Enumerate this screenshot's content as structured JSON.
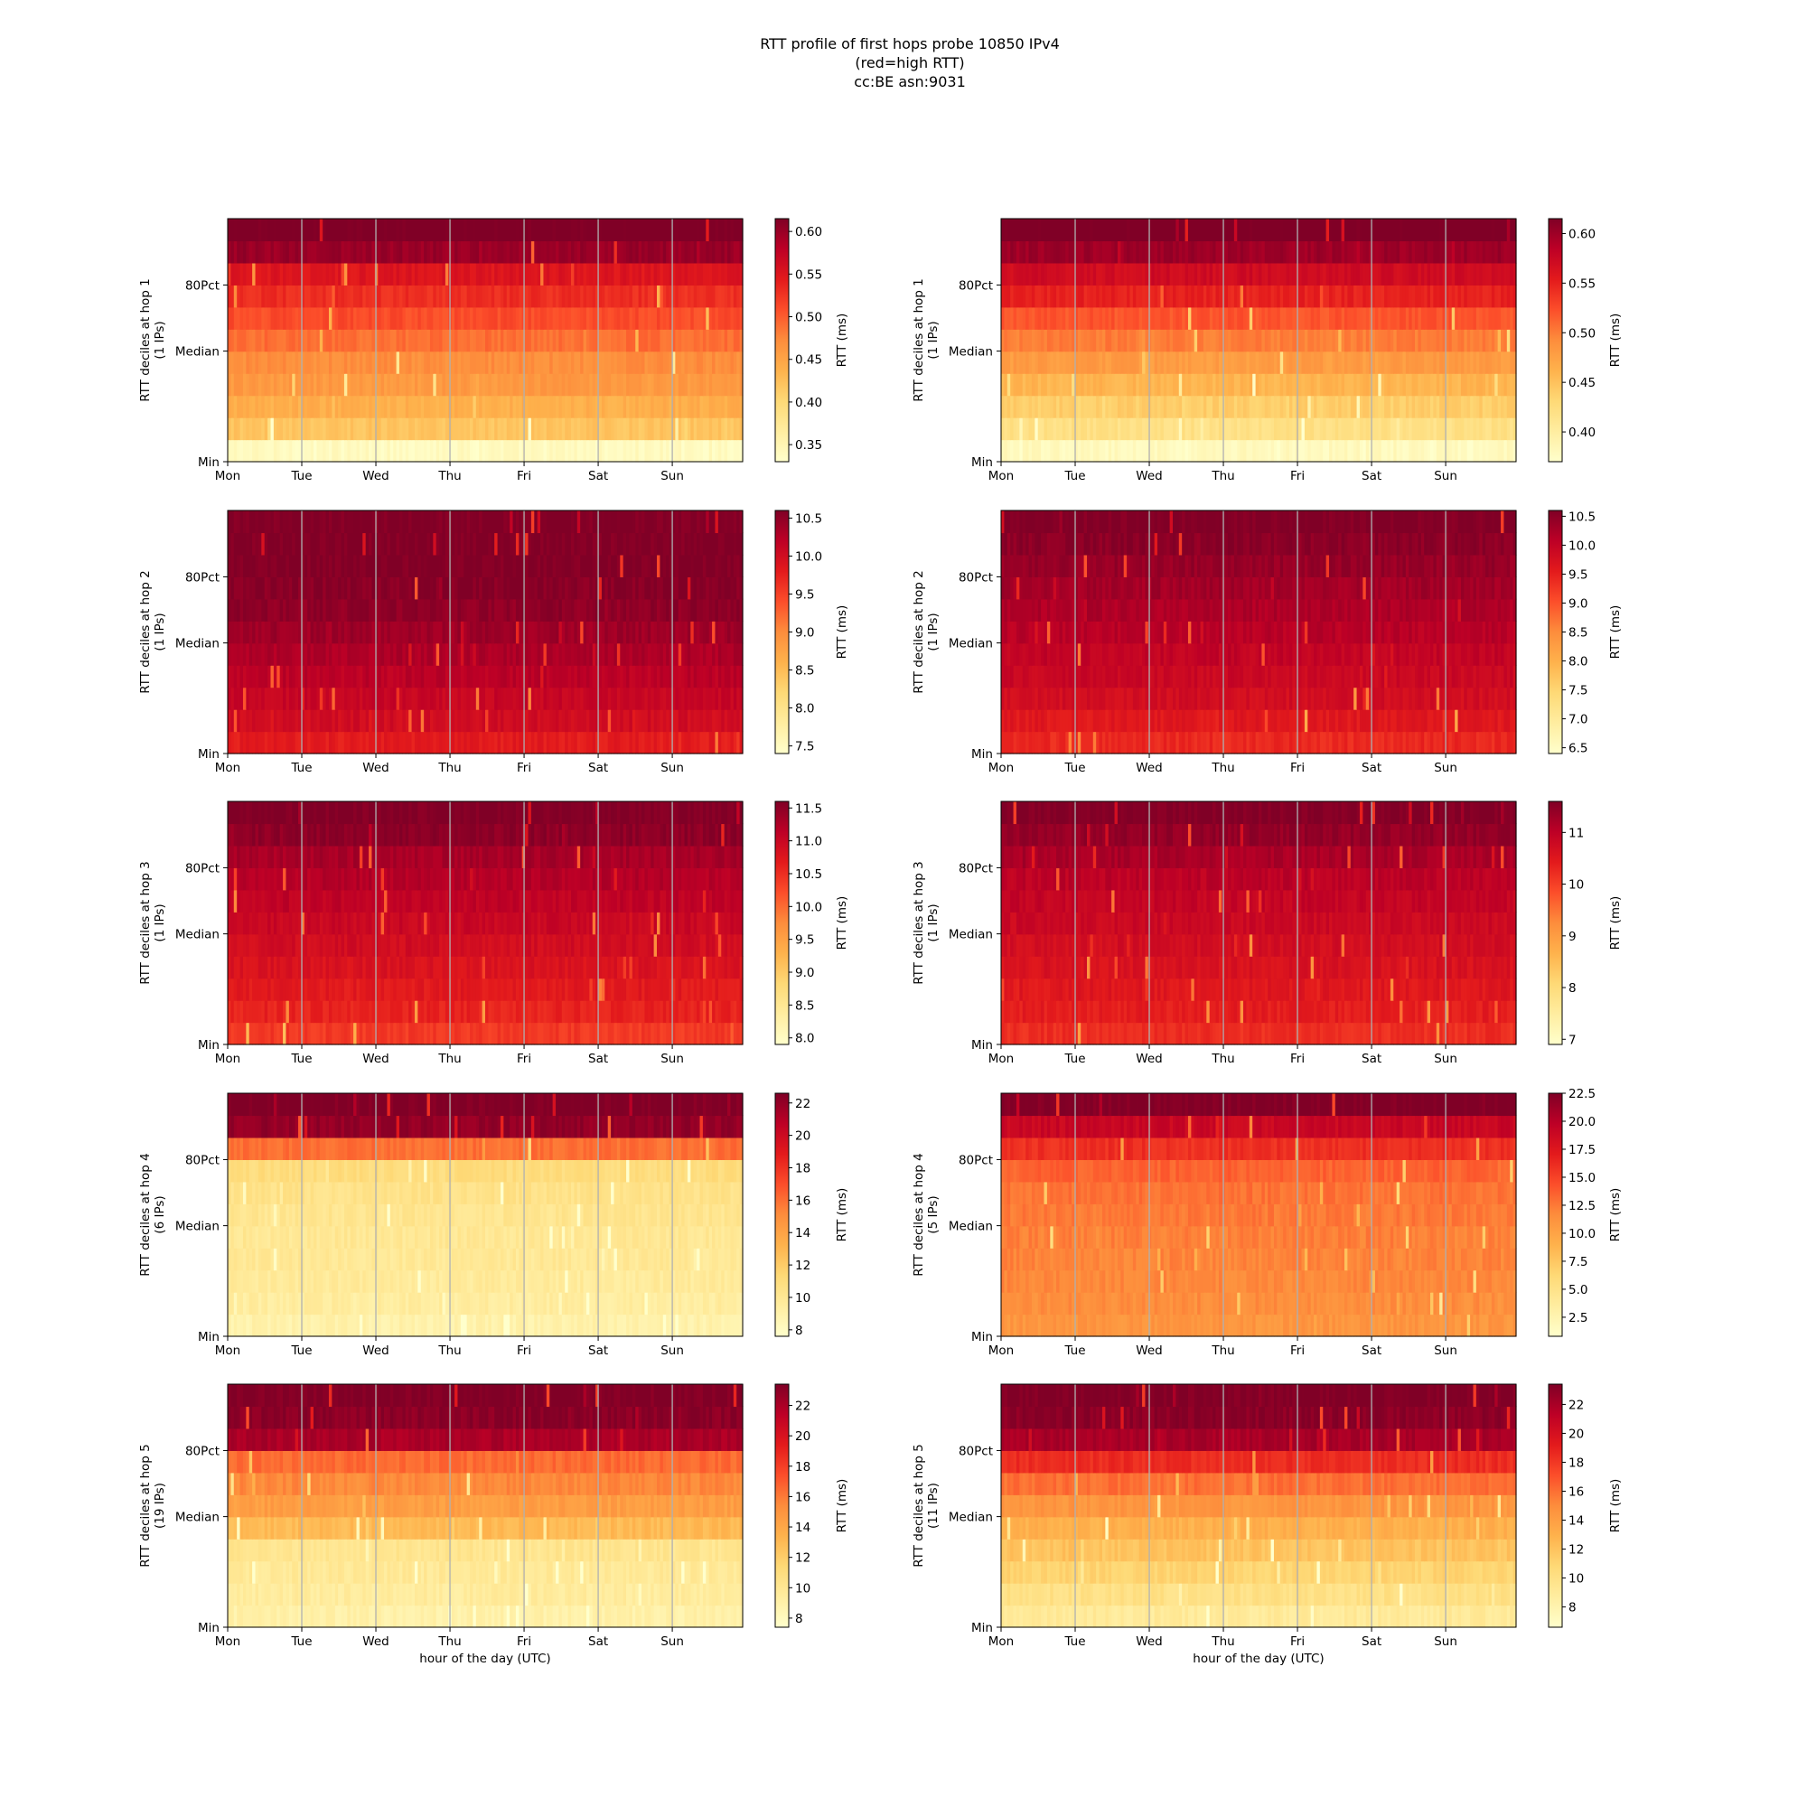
{
  "figure": {
    "title_lines": [
      "RTT profile of first hops probe 10850 IPv4",
      "(red=high RTT)",
      "cc:BE asn:9031"
    ]
  },
  "colormap": [
    "#ffffcc",
    "#ffeda0",
    "#fed976",
    "#feb24c",
    "#fd8d3c",
    "#fc4e2a",
    "#e31a1c",
    "#bd0026",
    "#800026"
  ],
  "chart_data": [
    {
      "type": "heatmap",
      "panel": "left",
      "hop": 1,
      "ylabel": [
        "RTT deciles at hop 1",
        "(1 IPs)"
      ],
      "xlabel": "",
      "x_ticks": [
        "Mon",
        "Tue",
        "Wed",
        "Thu",
        "Fri",
        "Sat",
        "Sun"
      ],
      "y_ticks": [
        "80Pct",
        "Median",
        "Min"
      ],
      "colorbar_label": "RTT (ms)",
      "colorbar_ticks": [
        "0.35",
        "0.40",
        "0.45",
        "0.50",
        "0.55",
        "0.60"
      ],
      "colorbar_range": [
        0.33,
        0.615
      ],
      "decile_values": [
        0.34,
        0.42,
        0.44,
        0.46,
        0.47,
        0.49,
        0.51,
        0.53,
        0.55,
        0.6,
        0.62
      ],
      "grid": true
    },
    {
      "type": "heatmap",
      "panel": "right",
      "hop": 1,
      "ylabel": [
        "RTT deciles at hop 1",
        "(1 IPs)"
      ],
      "xlabel": "",
      "x_ticks": [
        "Mon",
        "Tue",
        "Wed",
        "Thu",
        "Fri",
        "Sat",
        "Sun"
      ],
      "y_ticks": [
        "80Pct",
        "Median",
        "Min"
      ],
      "colorbar_label": "RTT (ms)",
      "colorbar_ticks": [
        "0.40",
        "0.45",
        "0.50",
        "0.55",
        "0.60"
      ],
      "colorbar_range": [
        0.37,
        0.615
      ],
      "decile_values": [
        0.38,
        0.42,
        0.44,
        0.46,
        0.48,
        0.5,
        0.52,
        0.55,
        0.57,
        0.6,
        0.62
      ],
      "grid": true
    },
    {
      "type": "heatmap",
      "panel": "left",
      "hop": 2,
      "ylabel": [
        "RTT deciles at hop 2",
        "(1 IPs)"
      ],
      "xlabel": "",
      "x_ticks": [
        "Mon",
        "Tue",
        "Wed",
        "Thu",
        "Fri",
        "Sat",
        "Sun"
      ],
      "y_ticks": [
        "80Pct",
        "Median",
        "Min"
      ],
      "colorbar_label": "RTT (ms)",
      "colorbar_ticks": [
        "7.5",
        "8.0",
        "8.5",
        "9.0",
        "9.5",
        "10.0",
        "10.5"
      ],
      "colorbar_range": [
        7.4,
        10.6
      ],
      "decile_values": [
        9.8,
        10.0,
        10.1,
        10.2,
        10.3,
        10.4,
        10.5,
        10.55,
        10.6,
        10.6,
        10.6
      ],
      "grid": true
    },
    {
      "type": "heatmap",
      "panel": "right",
      "hop": 2,
      "ylabel": [
        "RTT deciles at hop 2",
        "(1 IPs)"
      ],
      "xlabel": "",
      "x_ticks": [
        "Mon",
        "Tue",
        "Wed",
        "Thu",
        "Fri",
        "Sat",
        "Sun"
      ],
      "y_ticks": [
        "80Pct",
        "Median",
        "Min"
      ],
      "colorbar_label": "RTT (ms)",
      "colorbar_ticks": [
        "6.5",
        "7.0",
        "7.5",
        "8.0",
        "8.5",
        "9.0",
        "9.5",
        "10.0",
        "10.5"
      ],
      "colorbar_range": [
        6.4,
        10.6
      ],
      "decile_values": [
        9.4,
        9.6,
        9.8,
        9.9,
        10.0,
        10.1,
        10.2,
        10.3,
        10.4,
        10.5,
        10.6
      ],
      "grid": true
    },
    {
      "type": "heatmap",
      "panel": "left",
      "hop": 3,
      "ylabel": [
        "RTT deciles at hop 3",
        "(1 IPs)"
      ],
      "xlabel": "",
      "x_ticks": [
        "Mon",
        "Tue",
        "Wed",
        "Thu",
        "Fri",
        "Sat",
        "Sun"
      ],
      "y_ticks": [
        "80Pct",
        "Median",
        "Min"
      ],
      "colorbar_label": "RTT (ms)",
      "colorbar_ticks": [
        "8.0",
        "8.5",
        "9.0",
        "9.5",
        "10.0",
        "10.5",
        "11.0",
        "11.5"
      ],
      "colorbar_range": [
        7.9,
        11.6
      ],
      "decile_values": [
        10.4,
        10.6,
        10.7,
        10.8,
        10.9,
        11.0,
        11.1,
        11.2,
        11.3,
        11.5,
        11.6
      ],
      "grid": true
    },
    {
      "type": "heatmap",
      "panel": "right",
      "hop": 3,
      "ylabel": [
        "RTT deciles at hop 3",
        "(1 IPs)"
      ],
      "xlabel": "",
      "x_ticks": [
        "Mon",
        "Tue",
        "Wed",
        "Thu",
        "Fri",
        "Sat",
        "Sun"
      ],
      "y_ticks": [
        "80Pct",
        "Median",
        "Min"
      ],
      "colorbar_label": "RTT (ms)",
      "colorbar_ticks": [
        "7",
        "8",
        "9",
        "10",
        "11"
      ],
      "colorbar_range": [
        6.9,
        11.6
      ],
      "decile_values": [
        10.2,
        10.4,
        10.5,
        10.6,
        10.7,
        10.8,
        10.9,
        11.0,
        11.2,
        11.4,
        11.6
      ],
      "grid": true
    },
    {
      "type": "heatmap",
      "panel": "left",
      "hop": 4,
      "ylabel": [
        "RTT deciles at hop 4",
        "(6 IPs)"
      ],
      "xlabel": "",
      "x_ticks": [
        "Mon",
        "Tue",
        "Wed",
        "Thu",
        "Fri",
        "Sat",
        "Sun"
      ],
      "y_ticks": [
        "80Pct",
        "Median",
        "Min"
      ],
      "colorbar_label": "RTT (ms)",
      "colorbar_ticks": [
        "8",
        "10",
        "12",
        "14",
        "16",
        "18",
        "20",
        "22"
      ],
      "colorbar_range": [
        7.6,
        22.6
      ],
      "decile_values": [
        9.0,
        9.5,
        9.7,
        9.9,
        10.0,
        10.2,
        10.5,
        11.0,
        16.0,
        22.0,
        22.6
      ],
      "grid": true
    },
    {
      "type": "heatmap",
      "panel": "right",
      "hop": 4,
      "ylabel": [
        "RTT deciles at hop 4",
        "(5 IPs)"
      ],
      "xlabel": "",
      "x_ticks": [
        "Mon",
        "Tue",
        "Wed",
        "Thu",
        "Fri",
        "Sat",
        "Sun"
      ],
      "y_ticks": [
        "80Pct",
        "Median",
        "Min"
      ],
      "colorbar_label": "RTT (ms)",
      "colorbar_ticks": [
        "2.5",
        "5.0",
        "7.5",
        "10.0",
        "12.5",
        "15.0",
        "17.5",
        "20.0",
        "22.5"
      ],
      "colorbar_range": [
        0.8,
        22.5
      ],
      "decile_values": [
        11.0,
        11.5,
        11.8,
        12.0,
        12.2,
        12.5,
        12.8,
        13.5,
        16.0,
        19.0,
        22.5
      ],
      "grid": true
    },
    {
      "type": "heatmap",
      "panel": "left",
      "hop": 5,
      "ylabel": [
        "RTT deciles at hop 5",
        "(19 IPs)"
      ],
      "xlabel": "hour of the day (UTC)",
      "x_ticks": [
        "Mon",
        "Tue",
        "Wed",
        "Thu",
        "Fri",
        "Sat",
        "Sun"
      ],
      "y_ticks": [
        "80Pct",
        "Median",
        "Min"
      ],
      "colorbar_label": "RTT (ms)",
      "colorbar_ticks": [
        "8",
        "10",
        "12",
        "14",
        "16",
        "18",
        "20",
        "22"
      ],
      "colorbar_range": [
        7.4,
        23.4
      ],
      "decile_values": [
        9.0,
        9.5,
        9.8,
        10.2,
        13.0,
        14.5,
        15.5,
        16.5,
        22.0,
        23.0,
        23.4
      ],
      "grid": true
    },
    {
      "type": "heatmap",
      "panel": "right",
      "hop": 5,
      "ylabel": [
        "RTT deciles at hop 5",
        "(11 IPs)"
      ],
      "xlabel": "hour of the day (UTC)",
      "x_ticks": [
        "Mon",
        "Tue",
        "Wed",
        "Thu",
        "Fri",
        "Sat",
        "Sun"
      ],
      "y_ticks": [
        "80Pct",
        "Median",
        "Min"
      ],
      "colorbar_label": "RTT (ms)",
      "colorbar_ticks": [
        "8",
        "10",
        "12",
        "14",
        "16",
        "18",
        "20",
        "22"
      ],
      "colorbar_range": [
        6.6,
        23.4
      ],
      "decile_values": [
        9.0,
        10.0,
        11.0,
        12.0,
        13.0,
        14.5,
        16.0,
        18.5,
        22.0,
        23.0,
        23.4
      ],
      "grid": true
    }
  ]
}
